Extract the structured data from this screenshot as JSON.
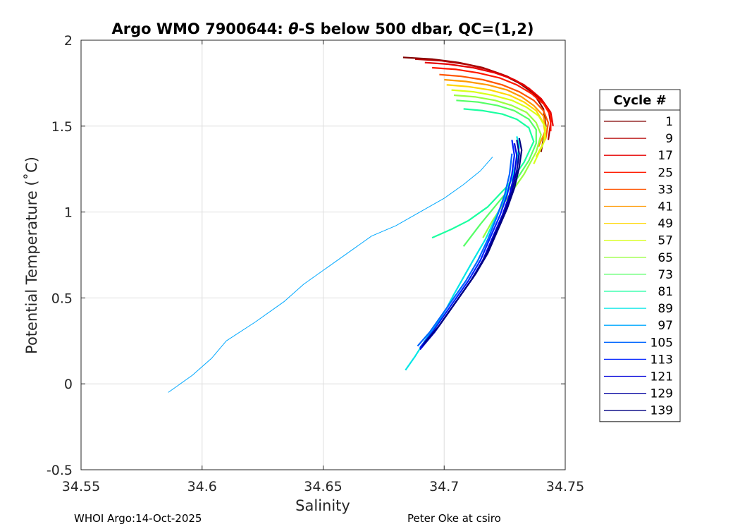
{
  "chart_data": {
    "type": "line",
    "title_parts": [
      "Argo WMO 7900644: ",
      "θ",
      "-S below 500 dbar,  QC=(1,2)"
    ],
    "xlabel": "Salinity",
    "ylabel": "Potential Temperature (˚C)",
    "xlim": [
      34.55,
      34.75
    ],
    "ylim": [
      -0.5,
      2
    ],
    "xticks": [
      34.55,
      34.6,
      34.65,
      34.7,
      34.75
    ],
    "xtick_labels": [
      "34.55",
      "34.6",
      "34.65",
      "34.7",
      "34.75"
    ],
    "yticks": [
      -0.5,
      0,
      0.5,
      1,
      1.5,
      2
    ],
    "ytick_labels": [
      "-0.5",
      "0",
      "0.5",
      "1",
      "1.5",
      "2"
    ],
    "grid": true,
    "legend": {
      "title": "Cycle #",
      "placement": "outside-right",
      "entries": [
        {
          "label": "1",
          "color": "#800000"
        },
        {
          "label": "9",
          "color": "#b30000"
        },
        {
          "label": "17",
          "color": "#e60000"
        },
        {
          "label": "25",
          "color": "#ff1a00"
        },
        {
          "label": "33",
          "color": "#ff5500"
        },
        {
          "label": "41",
          "color": "#ff9900"
        },
        {
          "label": "49",
          "color": "#ffd700"
        },
        {
          "label": "57",
          "color": "#d9ff1a"
        },
        {
          "label": "65",
          "color": "#99ff40"
        },
        {
          "label": "73",
          "color": "#55ff66"
        },
        {
          "label": "81",
          "color": "#1affa0"
        },
        {
          "label": "89",
          "color": "#00e6e6"
        },
        {
          "label": "97",
          "color": "#00a8ff"
        },
        {
          "label": "105",
          "color": "#0066ff"
        },
        {
          "label": "113",
          "color": "#0022ff"
        },
        {
          "label": "121",
          "color": "#0000d9"
        },
        {
          "label": "129",
          "color": "#00009f"
        },
        {
          "label": "139",
          "color": "#000080"
        }
      ]
    },
    "series": [
      {
        "name": "1",
        "color": "#800000",
        "x": [
          34.683,
          34.695,
          34.706,
          34.716,
          34.724,
          34.731,
          34.737,
          34.741,
          34.742,
          34.74
        ],
        "y": [
          1.9,
          1.89,
          1.87,
          1.84,
          1.8,
          1.75,
          1.69,
          1.6,
          1.5,
          1.35
        ]
      },
      {
        "name": "9",
        "color": "#b30000",
        "x": [
          34.688,
          34.699,
          34.709,
          34.718,
          34.726,
          34.733,
          34.738,
          34.743,
          34.744,
          34.743
        ],
        "y": [
          1.89,
          1.88,
          1.86,
          1.83,
          1.79,
          1.74,
          1.68,
          1.6,
          1.52,
          1.42
        ]
      },
      {
        "name": "17",
        "color": "#e60000",
        "x": [
          34.692,
          34.702,
          34.712,
          34.721,
          34.729,
          34.735,
          34.74,
          34.744,
          34.745
        ],
        "y": [
          1.87,
          1.86,
          1.84,
          1.81,
          1.77,
          1.72,
          1.66,
          1.58,
          1.5
        ]
      },
      {
        "name": "25",
        "color": "#ff1a00",
        "x": [
          34.695,
          34.705,
          34.714,
          34.723,
          34.73,
          34.736,
          34.741,
          34.744,
          34.744
        ],
        "y": [
          1.84,
          1.83,
          1.81,
          1.78,
          1.74,
          1.69,
          1.63,
          1.56,
          1.47
        ]
      },
      {
        "name": "33",
        "color": "#ff5500",
        "x": [
          34.698,
          34.707,
          34.716,
          34.724,
          34.731,
          34.737,
          34.741,
          34.743,
          34.742
        ],
        "y": [
          1.8,
          1.79,
          1.77,
          1.74,
          1.7,
          1.65,
          1.59,
          1.52,
          1.43
        ]
      },
      {
        "name": "41",
        "color": "#ff9900",
        "x": [
          34.7,
          34.709,
          34.718,
          34.726,
          34.732,
          34.737,
          34.741,
          34.742,
          34.739
        ],
        "y": [
          1.77,
          1.76,
          1.74,
          1.71,
          1.67,
          1.62,
          1.56,
          1.48,
          1.38
        ]
      },
      {
        "name": "49",
        "color": "#ffd700",
        "x": [
          34.701,
          34.71,
          34.719,
          34.727,
          34.733,
          34.738,
          34.741,
          34.742,
          34.738
        ],
        "y": [
          1.74,
          1.73,
          1.71,
          1.68,
          1.64,
          1.59,
          1.52,
          1.43,
          1.32
        ]
      },
      {
        "name": "57",
        "color": "#d9ff1a",
        "x": [
          34.703,
          34.712,
          34.72,
          34.728,
          34.734,
          34.739,
          34.742,
          34.741,
          34.737
        ],
        "y": [
          1.71,
          1.7,
          1.68,
          1.65,
          1.61,
          1.56,
          1.49,
          1.4,
          1.28
        ]
      },
      {
        "name": "65",
        "color": "#99ff40",
        "x": [
          34.704,
          34.713,
          34.721,
          34.728,
          34.734,
          34.738,
          34.74,
          34.738,
          34.733,
          34.726,
          34.72,
          34.716
        ],
        "y": [
          1.68,
          1.67,
          1.65,
          1.62,
          1.58,
          1.52,
          1.45,
          1.35,
          1.22,
          1.08,
          0.95,
          0.85
        ]
      },
      {
        "name": "73",
        "color": "#55ff66",
        "x": [
          34.705,
          34.714,
          34.722,
          34.729,
          34.735,
          34.738,
          34.738,
          34.735,
          34.729,
          34.722,
          34.715,
          34.708
        ],
        "y": [
          1.65,
          1.64,
          1.62,
          1.59,
          1.54,
          1.48,
          1.4,
          1.3,
          1.17,
          1.05,
          0.93,
          0.8
        ]
      },
      {
        "name": "81",
        "color": "#1affa0",
        "x": [
          34.708,
          34.716,
          34.724,
          34.73,
          34.735,
          34.737,
          34.733,
          34.726,
          34.718,
          34.71,
          34.703,
          34.695
        ],
        "y": [
          1.6,
          1.59,
          1.57,
          1.54,
          1.49,
          1.41,
          1.29,
          1.15,
          1.03,
          0.95,
          0.9,
          0.85
        ]
      },
      {
        "name": "89",
        "color": "#00e6e6",
        "x": [
          34.684,
          34.688,
          34.692,
          34.697,
          34.701,
          34.704,
          34.708,
          34.712,
          34.717,
          34.721,
          34.725,
          34.728,
          34.73,
          34.731,
          34.73
        ],
        "y": [
          0.08,
          0.16,
          0.25,
          0.35,
          0.44,
          0.52,
          0.62,
          0.72,
          0.84,
          0.96,
          1.08,
          1.2,
          1.3,
          1.38,
          1.44
        ]
      },
      {
        "name": "97",
        "color": "#00a8ff",
        "x": [
          34.586,
          34.596,
          34.604,
          34.61,
          34.622,
          34.634,
          34.642,
          34.65,
          34.656,
          34.664,
          34.67,
          34.68,
          34.69,
          34.7,
          34.708,
          34.715,
          34.72
        ],
        "y": [
          -0.05,
          0.05,
          0.15,
          0.25,
          0.36,
          0.48,
          0.58,
          0.66,
          0.72,
          0.8,
          0.86,
          0.92,
          1.0,
          1.08,
          1.16,
          1.24,
          1.32
        ]
      },
      {
        "name": "105",
        "color": "#0066ff",
        "x": [
          34.689,
          34.694,
          34.699,
          34.704,
          34.709,
          34.714,
          34.718,
          34.722,
          34.725,
          34.727,
          34.728
        ],
        "y": [
          0.22,
          0.3,
          0.4,
          0.5,
          0.6,
          0.72,
          0.84,
          0.98,
          1.1,
          1.22,
          1.34
        ]
      },
      {
        "name": "113",
        "color": "#0022ff",
        "x": [
          34.69,
          34.695,
          34.7,
          34.705,
          34.71,
          34.715,
          34.719,
          34.723,
          34.726,
          34.728,
          34.729,
          34.728
        ],
        "y": [
          0.21,
          0.3,
          0.4,
          0.5,
          0.6,
          0.72,
          0.85,
          0.98,
          1.1,
          1.22,
          1.33,
          1.42
        ]
      },
      {
        "name": "121",
        "color": "#0000d9",
        "x": [
          34.69,
          34.696,
          34.701,
          34.706,
          34.711,
          34.716,
          34.72,
          34.724,
          34.727,
          34.729,
          34.73,
          34.729
        ],
        "y": [
          0.2,
          0.3,
          0.4,
          0.5,
          0.6,
          0.72,
          0.85,
          0.98,
          1.1,
          1.22,
          1.33,
          1.4
        ]
      },
      {
        "name": "129",
        "color": "#00009f",
        "x": [
          34.691,
          34.697,
          34.702,
          34.707,
          34.712,
          34.717,
          34.721,
          34.725,
          34.728,
          34.73,
          34.731,
          34.73
        ],
        "y": [
          0.22,
          0.32,
          0.42,
          0.52,
          0.62,
          0.74,
          0.87,
          1.0,
          1.12,
          1.24,
          1.34,
          1.42
        ]
      },
      {
        "name": "139",
        "color": "#000080",
        "x": [
          34.692,
          34.698,
          34.703,
          34.708,
          34.713,
          34.718,
          34.722,
          34.726,
          34.729,
          34.731,
          34.732,
          34.731
        ],
        "y": [
          0.24,
          0.34,
          0.44,
          0.54,
          0.64,
          0.76,
          0.89,
          1.02,
          1.14,
          1.26,
          1.36,
          1.43
        ]
      }
    ]
  },
  "footer": {
    "left": "WHOI Argo:14-Oct-2025",
    "right": "Peter Oke at csiro"
  }
}
